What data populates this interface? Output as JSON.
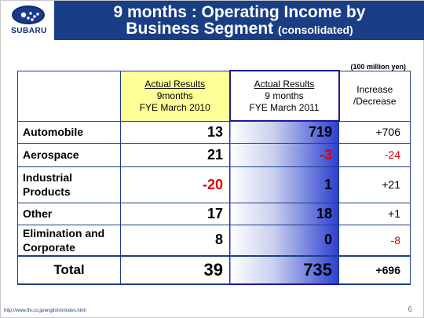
{
  "header": {
    "logo_text": "SUBARU",
    "title_line1": "9 months : Operating Income by",
    "title_line2": "Business Segment",
    "title_sub": "(consolidated)"
  },
  "unit": "(100 million yen)",
  "table": {
    "col_2010": {
      "line1": "Actual Results",
      "line2": "9months",
      "line3": "FYE March 2010"
    },
    "col_2011": {
      "line1": "Actual Results",
      "line2": "9 months",
      "line3": "FYE March 2011"
    },
    "col_inc": {
      "line1": "Increase",
      "line2": "/Decrease"
    },
    "rows": [
      {
        "label": "Automobile",
        "v2010": "13",
        "v2011": "719",
        "inc": "+706"
      },
      {
        "label": "Aerospace",
        "v2010": "21",
        "v2011": "-3",
        "inc": "-24"
      },
      {
        "label_line1": "Industrial",
        "label_line2": "Products",
        "v2010": "-20",
        "v2011": "1",
        "inc": "+21"
      },
      {
        "label": "Other",
        "v2010": "17",
        "v2011": "18",
        "inc": "+1"
      },
      {
        "label_line1": "Elimination and",
        "label_line2": "Corporate",
        "v2010": "8",
        "v2011": "0",
        "inc": "-8"
      }
    ],
    "total": {
      "label": "Total",
      "v2010": "39",
      "v2011": "735",
      "inc": "+696"
    }
  },
  "colors": {
    "brand_blue": "#1a3e86",
    "negative_red": "#e00000",
    "highlight_yellow": "#ffff99"
  },
  "footer": {
    "url": "http://www.fhi.co.jp/english/ir/index.html",
    "page": "6"
  }
}
